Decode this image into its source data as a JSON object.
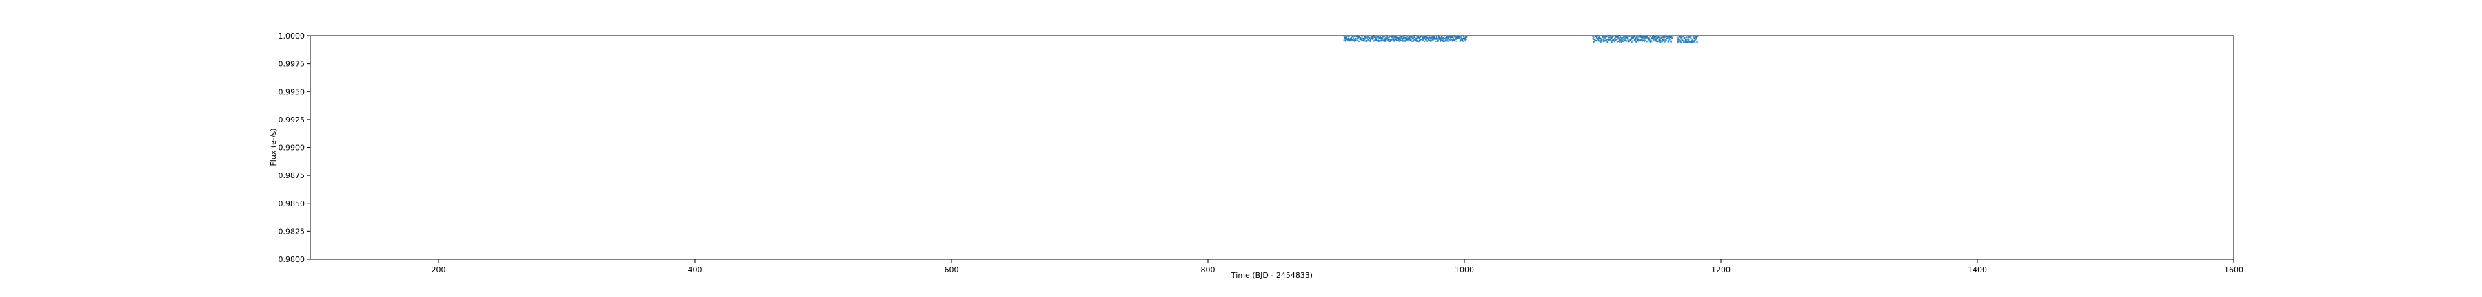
{
  "chart_data": {
    "type": "scatter",
    "title": "",
    "xlabel": "Time (BJD - 2454833)",
    "ylabel": "Flux (e-/s)",
    "xlim": [
      100,
      1600
    ],
    "ylim": [
      0.98,
      1.0
    ],
    "xticks": [
      200,
      400,
      600,
      800,
      1000,
      1200,
      1400,
      1600
    ],
    "yticks": [
      0.98,
      0.9825,
      0.985,
      0.9875,
      0.99,
      0.9925,
      0.995,
      0.9975,
      1.0
    ],
    "ytick_labels": [
      "0.9800",
      "0.9825",
      "0.9850",
      "0.9875",
      "0.9900",
      "0.9925",
      "0.9950",
      "0.9975",
      "1.0000"
    ],
    "grid": false,
    "series": [
      {
        "color": "#1f77b4",
        "segments": [
          {
            "x_start": 906,
            "x_end": 1002,
            "y_center": 0.99975,
            "y_spread": 0.00025
          },
          {
            "x_start": 1100,
            "x_end": 1162,
            "y_center": 0.99972,
            "y_spread": 0.00028
          },
          {
            "x_start": 1166,
            "x_end": 1182,
            "y_center": 0.99968,
            "y_spread": 0.0003
          }
        ]
      }
    ]
  }
}
